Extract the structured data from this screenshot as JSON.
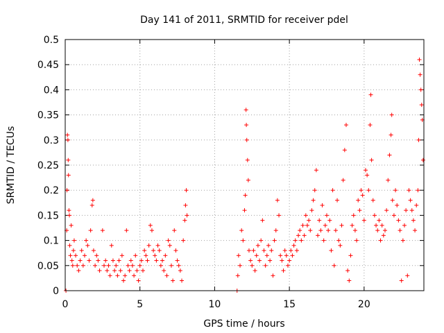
{
  "chart_data": {
    "type": "scatter",
    "title": "Day 141 of 2011, SRMTID for receiver pdel",
    "xlabel": "GPS time / hours",
    "ylabel": "SRMTID / TECUs",
    "xlim": [
      0,
      24
    ],
    "ylim": [
      0,
      0.5
    ],
    "xticks": [
      0,
      5,
      10,
      15,
      20
    ],
    "xtick_labels": [
      "0",
      "5",
      "10",
      "15",
      "20"
    ],
    "yticks": [
      0,
      0.05,
      0.1,
      0.15,
      0.2,
      0.25,
      0.3,
      0.35,
      0.4,
      0.45,
      0.5
    ],
    "ytick_labels": [
      "0",
      "0.05",
      "0.1",
      "0.15",
      "0.2",
      "0.25",
      "0.3",
      "0.35",
      "0.4",
      "0.45",
      "0.5"
    ],
    "grid": true,
    "marker": "+",
    "color": "#ff0000",
    "series": [
      {
        "name": "SRMTID",
        "points": [
          [
            0.05,
            0.0
          ],
          [
            0.1,
            0.12
          ],
          [
            0.12,
            0.2
          ],
          [
            0.15,
            0.31
          ],
          [
            0.18,
            0.3
          ],
          [
            0.2,
            0.26
          ],
          [
            0.22,
            0.23
          ],
          [
            0.25,
            0.16
          ],
          [
            0.28,
            0.15
          ],
          [
            0.3,
            0.09
          ],
          [
            0.35,
            0.07
          ],
          [
            0.4,
            0.13
          ],
          [
            0.45,
            0.06
          ],
          [
            0.5,
            0.05
          ],
          [
            0.55,
            0.08
          ],
          [
            0.6,
            0.1
          ],
          [
            0.7,
            0.07
          ],
          [
            0.8,
            0.05
          ],
          [
            0.9,
            0.04
          ],
          [
            1.0,
            0.06
          ],
          [
            1.1,
            0.08
          ],
          [
            1.2,
            0.05
          ],
          [
            1.3,
            0.07
          ],
          [
            1.4,
            0.1
          ],
          [
            1.5,
            0.09
          ],
          [
            1.6,
            0.06
          ],
          [
            1.7,
            0.12
          ],
          [
            1.8,
            0.17
          ],
          [
            1.85,
            0.18
          ],
          [
            1.9,
            0.08
          ],
          [
            2.0,
            0.05
          ],
          [
            2.1,
            0.07
          ],
          [
            2.2,
            0.06
          ],
          [
            2.3,
            0.04
          ],
          [
            2.5,
            0.12
          ],
          [
            2.6,
            0.05
          ],
          [
            2.7,
            0.06
          ],
          [
            2.8,
            0.04
          ],
          [
            2.9,
            0.05
          ],
          [
            3.0,
            0.03
          ],
          [
            3.1,
            0.09
          ],
          [
            3.2,
            0.06
          ],
          [
            3.3,
            0.04
          ],
          [
            3.4,
            0.05
          ],
          [
            3.5,
            0.03
          ],
          [
            3.6,
            0.06
          ],
          [
            3.7,
            0.04
          ],
          [
            3.8,
            0.07
          ],
          [
            3.9,
            0.02
          ],
          [
            4.0,
            0.03
          ],
          [
            4.1,
            0.12
          ],
          [
            4.2,
            0.05
          ],
          [
            4.3,
            0.04
          ],
          [
            4.4,
            0.06
          ],
          [
            4.5,
            0.05
          ],
          [
            4.6,
            0.03
          ],
          [
            4.7,
            0.07
          ],
          [
            4.8,
            0.04
          ],
          [
            4.9,
            0.02
          ],
          [
            5.0,
            0.05
          ],
          [
            5.1,
            0.06
          ],
          [
            5.2,
            0.04
          ],
          [
            5.3,
            0.08
          ],
          [
            5.4,
            0.07
          ],
          [
            5.5,
            0.06
          ],
          [
            5.6,
            0.09
          ],
          [
            5.7,
            0.13
          ],
          [
            5.8,
            0.12
          ],
          [
            5.9,
            0.08
          ],
          [
            6.0,
            0.07
          ],
          [
            6.1,
            0.06
          ],
          [
            6.2,
            0.09
          ],
          [
            6.3,
            0.08
          ],
          [
            6.4,
            0.05
          ],
          [
            6.5,
            0.06
          ],
          [
            6.6,
            0.04
          ],
          [
            6.7,
            0.07
          ],
          [
            6.8,
            0.03
          ],
          [
            6.9,
            0.1
          ],
          [
            7.0,
            0.09
          ],
          [
            7.1,
            0.05
          ],
          [
            7.2,
            0.02
          ],
          [
            7.3,
            0.12
          ],
          [
            7.4,
            0.08
          ],
          [
            7.5,
            0.06
          ],
          [
            7.6,
            0.05
          ],
          [
            7.7,
            0.04
          ],
          [
            7.8,
            0.02
          ],
          [
            7.9,
            0.1
          ],
          [
            8.0,
            0.14
          ],
          [
            8.05,
            0.17
          ],
          [
            8.1,
            0.2
          ],
          [
            8.15,
            0.15
          ],
          [
            11.5,
            0.0
          ],
          [
            11.55,
            0.03
          ],
          [
            11.6,
            0.07
          ],
          [
            11.7,
            0.05
          ],
          [
            11.8,
            0.12
          ],
          [
            11.9,
            0.1
          ],
          [
            12.0,
            0.16
          ],
          [
            12.05,
            0.19
          ],
          [
            12.1,
            0.36
          ],
          [
            12.12,
            0.33
          ],
          [
            12.15,
            0.3
          ],
          [
            12.2,
            0.26
          ],
          [
            12.25,
            0.22
          ],
          [
            12.3,
            0.08
          ],
          [
            12.4,
            0.06
          ],
          [
            12.5,
            0.05
          ],
          [
            12.6,
            0.08
          ],
          [
            12.7,
            0.04
          ],
          [
            12.8,
            0.07
          ],
          [
            12.9,
            0.09
          ],
          [
            13.0,
            0.06
          ],
          [
            13.1,
            0.1
          ],
          [
            13.2,
            0.14
          ],
          [
            13.3,
            0.08
          ],
          [
            13.4,
            0.05
          ],
          [
            13.5,
            0.07
          ],
          [
            13.6,
            0.09
          ],
          [
            13.7,
            0.06
          ],
          [
            13.8,
            0.08
          ],
          [
            13.9,
            0.03
          ],
          [
            14.0,
            0.1
          ],
          [
            14.1,
            0.12
          ],
          [
            14.2,
            0.18
          ],
          [
            14.3,
            0.15
          ],
          [
            14.4,
            0.07
          ],
          [
            14.5,
            0.06
          ],
          [
            14.6,
            0.04
          ],
          [
            14.7,
            0.08
          ],
          [
            14.8,
            0.07
          ],
          [
            14.9,
            0.05
          ],
          [
            15.0,
            0.06
          ],
          [
            15.1,
            0.08
          ],
          [
            15.2,
            0.07
          ],
          [
            15.3,
            0.09
          ],
          [
            15.4,
            0.1
          ],
          [
            15.5,
            0.08
          ],
          [
            15.6,
            0.11
          ],
          [
            15.7,
            0.12
          ],
          [
            15.8,
            0.1
          ],
          [
            15.9,
            0.13
          ],
          [
            16.0,
            0.11
          ],
          [
            16.1,
            0.15
          ],
          [
            16.2,
            0.13
          ],
          [
            16.3,
            0.14
          ],
          [
            16.4,
            0.12
          ],
          [
            16.5,
            0.16
          ],
          [
            16.6,
            0.18
          ],
          [
            16.7,
            0.2
          ],
          [
            16.8,
            0.24
          ],
          [
            16.9,
            0.11
          ],
          [
            17.0,
            0.14
          ],
          [
            17.1,
            0.12
          ],
          [
            17.2,
            0.17
          ],
          [
            17.3,
            0.1
          ],
          [
            17.4,
            0.13
          ],
          [
            17.5,
            0.15
          ],
          [
            17.6,
            0.12
          ],
          [
            17.7,
            0.14
          ],
          [
            17.8,
            0.08
          ],
          [
            17.9,
            0.2
          ],
          [
            18.0,
            0.05
          ],
          [
            18.1,
            0.12
          ],
          [
            18.2,
            0.18
          ],
          [
            18.3,
            0.1
          ],
          [
            18.4,
            0.09
          ],
          [
            18.5,
            0.13
          ],
          [
            18.6,
            0.22
          ],
          [
            18.7,
            0.28
          ],
          [
            18.8,
            0.33
          ],
          [
            18.9,
            0.04
          ],
          [
            19.0,
            0.02
          ],
          [
            19.1,
            0.07
          ],
          [
            19.2,
            0.13
          ],
          [
            19.3,
            0.15
          ],
          [
            19.4,
            0.12
          ],
          [
            19.5,
            0.1
          ],
          [
            19.6,
            0.18
          ],
          [
            19.7,
            0.16
          ],
          [
            19.8,
            0.2
          ],
          [
            19.9,
            0.19
          ],
          [
            20.0,
            0.14
          ],
          [
            20.1,
            0.24
          ],
          [
            20.2,
            0.23
          ],
          [
            20.3,
            0.2
          ],
          [
            20.4,
            0.33
          ],
          [
            20.45,
            0.39
          ],
          [
            20.5,
            0.26
          ],
          [
            20.6,
            0.18
          ],
          [
            20.7,
            0.15
          ],
          [
            20.8,
            0.13
          ],
          [
            20.9,
            0.12
          ],
          [
            21.0,
            0.14
          ],
          [
            21.1,
            0.1
          ],
          [
            21.2,
            0.13
          ],
          [
            21.3,
            0.11
          ],
          [
            21.4,
            0.12
          ],
          [
            21.5,
            0.16
          ],
          [
            21.6,
            0.22
          ],
          [
            21.7,
            0.27
          ],
          [
            21.8,
            0.31
          ],
          [
            21.85,
            0.35
          ],
          [
            21.9,
            0.18
          ],
          [
            22.0,
            0.15
          ],
          [
            22.1,
            0.2
          ],
          [
            22.2,
            0.17
          ],
          [
            22.3,
            0.14
          ],
          [
            22.4,
            0.12
          ],
          [
            22.5,
            0.02
          ],
          [
            22.6,
            0.1
          ],
          [
            22.7,
            0.13
          ],
          [
            22.8,
            0.16
          ],
          [
            22.9,
            0.03
          ],
          [
            23.0,
            0.2
          ],
          [
            23.1,
            0.18
          ],
          [
            23.2,
            0.16
          ],
          [
            23.3,
            0.14
          ],
          [
            23.4,
            0.12
          ],
          [
            23.5,
            0.17
          ],
          [
            23.6,
            0.2
          ],
          [
            23.65,
            0.3
          ],
          [
            23.7,
            0.46
          ],
          [
            23.75,
            0.43
          ],
          [
            23.8,
            0.4
          ],
          [
            23.85,
            0.37
          ],
          [
            23.9,
            0.34
          ],
          [
            23.95,
            0.26
          ]
        ]
      }
    ]
  }
}
